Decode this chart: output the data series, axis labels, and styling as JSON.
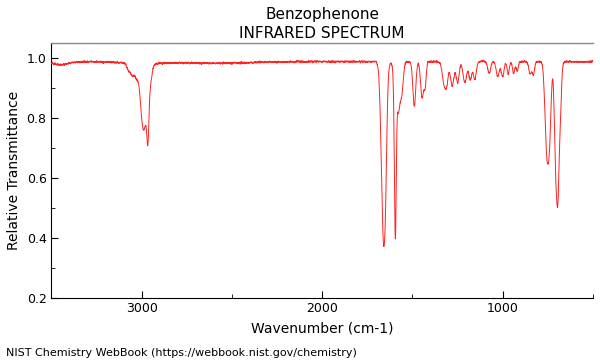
{
  "title_line1": "Benzophenone",
  "title_line2": "INFRARED SPECTRUM",
  "xlabel": "Wavenumber (cm-1)",
  "ylabel": "Relative Transmittance",
  "xlim": [
    3500,
    500
  ],
  "ylim": [
    0.2,
    1.05
  ],
  "yticks": [
    0.2,
    0.4,
    0.6,
    0.8,
    1.0
  ],
  "xticks": [
    3000,
    2000,
    1000
  ],
  "line_color": "#FF2222",
  "background_color": "#ffffff",
  "credit": "NIST Chemistry WebBook (https://webbook.nist.gov/chemistry)",
  "title_fontsize": 11,
  "label_fontsize": 10,
  "credit_fontsize": 8,
  "tick_fontsize": 9
}
